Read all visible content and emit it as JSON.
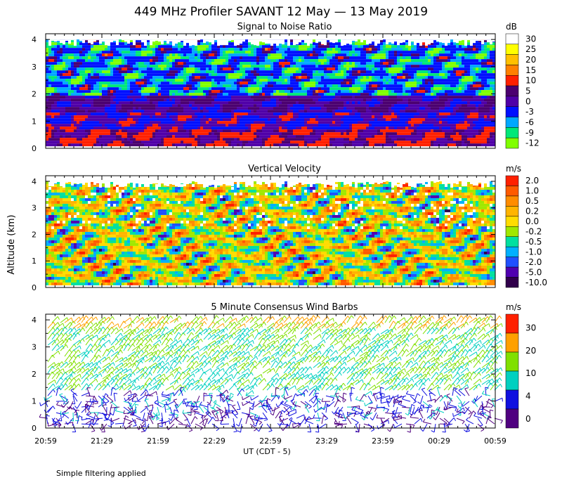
{
  "chart_data": {
    "type": "heatmap",
    "title": "449 MHz Profiler SAVANT 12 May — 13 May 2019",
    "xlabel": "UT  (CDT - 5)",
    "ylabel": "Altitude (km)",
    "x_ticks": [
      "20:59",
      "21:29",
      "21:59",
      "22:29",
      "22:59",
      "23:29",
      "23:59",
      "00:29",
      "00:59"
    ],
    "y_ticks": [
      "0",
      "1",
      "2",
      "3",
      "4"
    ],
    "ylim": [
      0,
      4
    ],
    "panels": [
      {
        "title": "Signal to Noise Ratio",
        "unit": "dB",
        "type": "heatmap",
        "levels": [
          "30",
          "25",
          "20",
          "15",
          "10",
          "5",
          "0",
          "-3",
          "-6",
          "-9",
          "-12"
        ],
        "colors": [
          "#ffffff",
          "#ffff00",
          "#ffc000",
          "#ff8000",
          "#ff2000",
          "#4b0070",
          "#5000a8",
          "#0010ff",
          "#00a8ff",
          "#00e878",
          "#80ff00"
        ]
      },
      {
        "title": "Vertical Velocity",
        "unit": "m/s",
        "type": "heatmap",
        "levels": [
          "2.0",
          "1.0",
          "0.5",
          "0.2",
          "0.0",
          "-0.2",
          "-0.5",
          "-1.0",
          "-2.0",
          "-5.0",
          "-10.0"
        ],
        "colors": [
          "#ff2000",
          "#ff5a00",
          "#ff8c00",
          "#ffb400",
          "#ffdc00",
          "#a0e800",
          "#00e0a0",
          "#00b0ff",
          "#2050ff",
          "#5000b0",
          "#30004a"
        ]
      },
      {
        "title": "5 Minute Consensus Wind Barbs",
        "unit": "m/s",
        "type": "wind barbs",
        "levels": [
          "30",
          "20",
          "10",
          "4",
          "0"
        ],
        "colors": [
          "#ff2000",
          "#ffa000",
          "#80e000",
          "#00d0c0",
          "#1010e0",
          "#500080"
        ]
      }
    ]
  },
  "footnote": "Simple filtering applied"
}
